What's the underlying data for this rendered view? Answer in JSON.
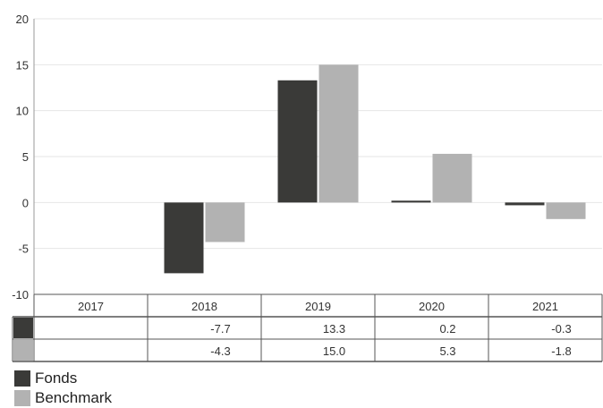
{
  "chart_data": {
    "type": "bar",
    "categories": [
      "2017",
      "2018",
      "2019",
      "2020",
      "2021"
    ],
    "series": [
      {
        "name": "Fonds",
        "color": "#3a3a38",
        "values": [
          null,
          -7.7,
          13.3,
          0.2,
          -0.3
        ],
        "labels": [
          "",
          "-7.7",
          "13.3",
          "0.2",
          "-0.3"
        ]
      },
      {
        "name": "Benchmark",
        "color": "#b2b2b2",
        "values": [
          null,
          -4.3,
          15.0,
          5.3,
          -1.8
        ],
        "labels": [
          "",
          "-4.3",
          "15.0",
          "5.3",
          "-1.8"
        ]
      }
    ],
    "ylim": [
      -10,
      20
    ],
    "yticks": [
      "-10",
      "-5",
      "0",
      "5",
      "10",
      "15",
      "20"
    ],
    "grid": true,
    "legend": "bottom-left",
    "data_table": true
  }
}
